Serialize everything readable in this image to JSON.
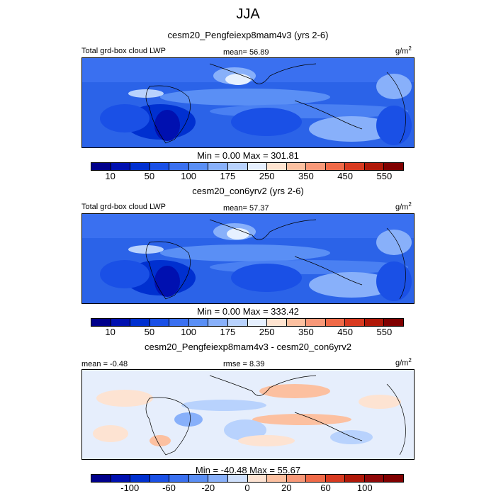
{
  "figure": {
    "title": "JJA"
  },
  "chart_data": [
    {
      "type": "heatmap",
      "title": "cesm20_Pengfeiexp8mam4v3 (yrs 2-6)",
      "left_label": "Total grd-box cloud LWP",
      "center_label": "mean=  56.89",
      "units": "g/m",
      "units_sup": "2",
      "minmax": "Min =   0.00 Max = 301.81",
      "min": 0.0,
      "max": 301.81,
      "mean": 56.89,
      "levels": [
        10,
        25,
        50,
        75,
        100,
        125,
        175,
        200,
        250,
        300,
        350,
        400,
        450,
        500,
        550
      ],
      "tick_labels": [
        "10",
        "50",
        "100",
        "175",
        "250",
        "350",
        "450",
        "550"
      ],
      "colors": [
        "#00008b",
        "#0010b0",
        "#0030d0",
        "#1a50e6",
        "#3a70f0",
        "#5a8ff5",
        "#88b0fa",
        "#b8d2fd",
        "#e6f0ff",
        "#ffe4d0",
        "#fcc0a0",
        "#f89878",
        "#f06a48",
        "#d83a20",
        "#b01808",
        "#800000"
      ]
    },
    {
      "type": "heatmap",
      "title": "cesm20_con6yrv2 (yrs 2-6)",
      "left_label": "Total grd-box cloud LWP",
      "center_label": "mean=  57.37",
      "units": "g/m",
      "units_sup": "2",
      "minmax": "Min =   0.00 Max = 333.42",
      "min": 0.0,
      "max": 333.42,
      "mean": 57.37,
      "levels": [
        10,
        25,
        50,
        75,
        100,
        125,
        175,
        200,
        250,
        300,
        350,
        400,
        450,
        500,
        550
      ],
      "tick_labels": [
        "10",
        "50",
        "100",
        "175",
        "250",
        "350",
        "450",
        "550"
      ],
      "colors": [
        "#00008b",
        "#0010b0",
        "#0030d0",
        "#1a50e6",
        "#3a70f0",
        "#5a8ff5",
        "#88b0fa",
        "#b8d2fd",
        "#e6f0ff",
        "#ffe4d0",
        "#fcc0a0",
        "#f89878",
        "#f06a48",
        "#d83a20",
        "#b01808",
        "#800000"
      ]
    },
    {
      "type": "heatmap",
      "title": "cesm20_Pengfeiexp8mam4v3 - cesm20_con6yrv2",
      "left_label": "mean = -0.48",
      "center_label": "rmse =   8.39",
      "units": "g/m",
      "units_sup": "2",
      "minmax": "Min = -40.48 Max =  55.67",
      "min": -40.48,
      "max": 55.67,
      "mean": -0.48,
      "rmse": 8.39,
      "levels": [
        -120,
        -100,
        -80,
        -60,
        -40,
        -20,
        -10,
        0,
        10,
        20,
        40,
        60,
        80,
        100,
        120
      ],
      "tick_labels": [
        "-100",
        "-60",
        "-20",
        "0",
        "20",
        "60",
        "100"
      ],
      "colors": [
        "#00008b",
        "#0010b0",
        "#0030d0",
        "#1a50e6",
        "#3a70f0",
        "#5a8ff5",
        "#88b0fa",
        "#cfe0fb",
        "#fde3d2",
        "#fcc0a0",
        "#f89878",
        "#f06a48",
        "#d83a20",
        "#b01808",
        "#900808",
        "#800000"
      ]
    }
  ]
}
